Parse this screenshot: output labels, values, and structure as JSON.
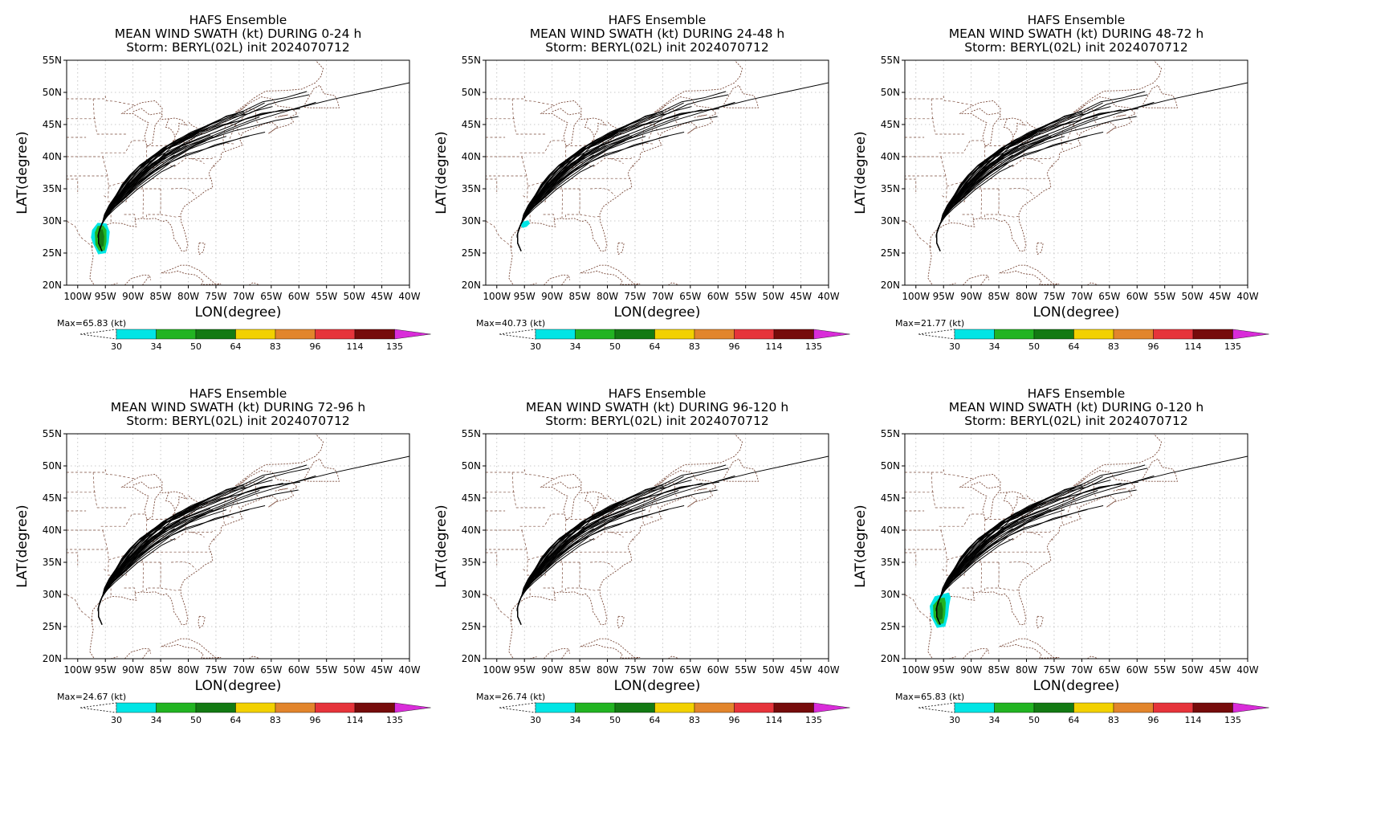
{
  "colorbar": {
    "colors": [
      "#00e5e5",
      "#22b422",
      "#137a13",
      "#f2d100",
      "#e2852c",
      "#e6343b",
      "#760b0b",
      "#d92cd9"
    ],
    "labels": [
      "30",
      "34",
      "50",
      "64",
      "83",
      "96",
      "114",
      "135"
    ]
  },
  "axes": {
    "xlabel": "LON(degree)",
    "ylabel": "LAT(degree)",
    "lon_range": [
      -102,
      -40
    ],
    "lat_range": [
      20,
      55
    ],
    "xticks": [
      "100W",
      "95W",
      "90W",
      "85W",
      "80W",
      "75W",
      "70W",
      "65W",
      "60W",
      "55W",
      "50W",
      "45W",
      "40W"
    ],
    "yticks": [
      "20N",
      "25N",
      "30N",
      "35N",
      "40N",
      "45N",
      "50N",
      "55N"
    ]
  },
  "panels": [
    {
      "title": [
        "HAFS Ensemble",
        "MEAN WIND SWATH (kt) DURING  0-24 h",
        "Storm: BERYL(02L) init 2024070712"
      ],
      "max_label": "Max=65.83 (kt)",
      "swath": "large"
    },
    {
      "title": [
        "HAFS Ensemble",
        "MEAN WIND SWATH (kt) DURING 24-48 h",
        "Storm: BERYL(02L) init 2024070712"
      ],
      "max_label": "Max=40.73 (kt)",
      "swath": "small"
    },
    {
      "title": [
        "HAFS Ensemble",
        "MEAN WIND SWATH (kt) DURING 48-72 h",
        "Storm: BERYL(02L) init 2024070712"
      ],
      "max_label": "Max=21.77 (kt)",
      "swath": "none"
    },
    {
      "title": [
        "HAFS Ensemble",
        "MEAN WIND SWATH (kt) DURING 72-96 h",
        "Storm: BERYL(02L) init 2024070712"
      ],
      "max_label": "Max=24.67 (kt)",
      "swath": "none"
    },
    {
      "title": [
        "HAFS Ensemble",
        "MEAN WIND SWATH (kt) DURING 96-120 h",
        "Storm: BERYL(02L) init 2024070712"
      ],
      "max_label": "Max=26.74 (kt)",
      "swath": "none"
    },
    {
      "title": [
        "HAFS Ensemble",
        "MEAN WIND SWATH (kt) DURING 0-120 h",
        "Storm: BERYL(02L) init 2024070712"
      ],
      "max_label": "Max=65.83 (kt)",
      "swath": "full"
    }
  ]
}
